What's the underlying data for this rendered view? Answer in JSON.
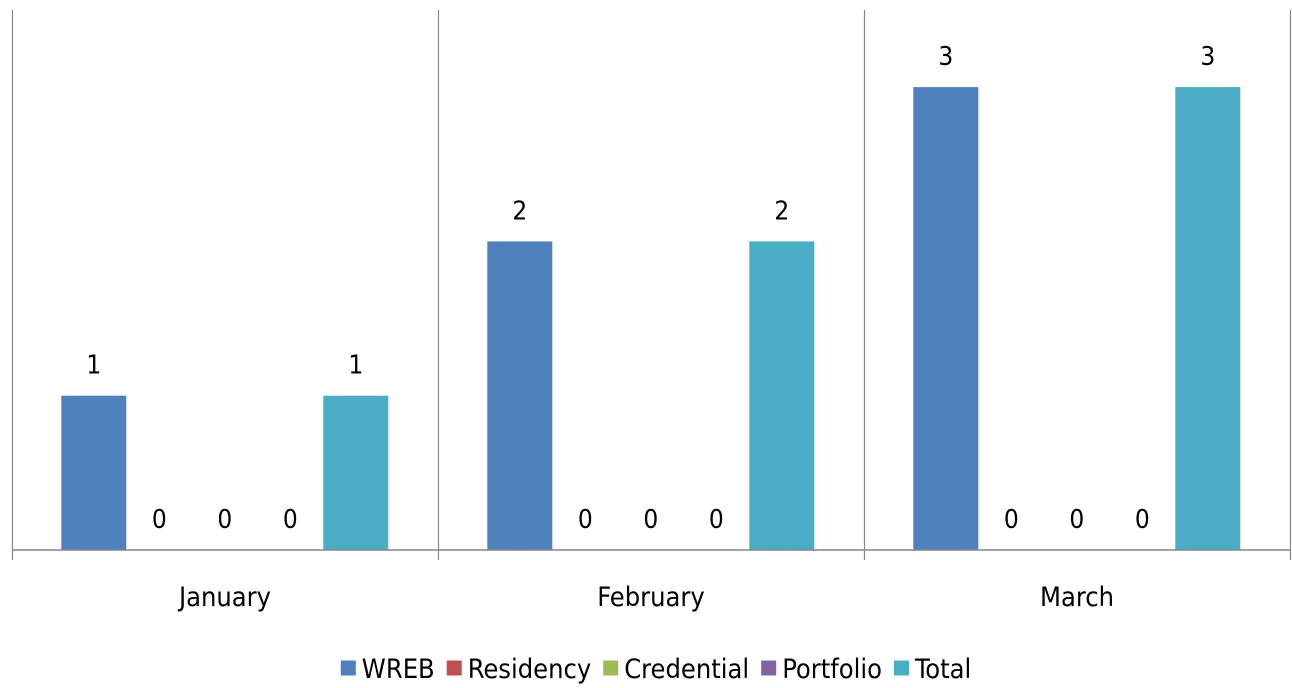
{
  "chart_data": {
    "type": "bar",
    "title": "",
    "xlabel": "",
    "ylabel": "",
    "ylim": [
      0,
      3
    ],
    "grid": false,
    "legend_position": "bottom",
    "categories": [
      "January",
      "February",
      "March"
    ],
    "series": [
      {
        "name": "WREB",
        "color": "#4f81bd",
        "values": [
          1,
          2,
          3
        ]
      },
      {
        "name": "Residency",
        "color": "#c0504d",
        "values": [
          0,
          0,
          0
        ]
      },
      {
        "name": "Credential",
        "color": "#9bbb59",
        "values": [
          0,
          0,
          0
        ]
      },
      {
        "name": "Portfolio",
        "color": "#8064a2",
        "values": [
          0,
          0,
          0
        ]
      },
      {
        "name": "Total",
        "color": "#4bacc6",
        "values": [
          1,
          2,
          3
        ]
      }
    ],
    "data_labels": true
  }
}
